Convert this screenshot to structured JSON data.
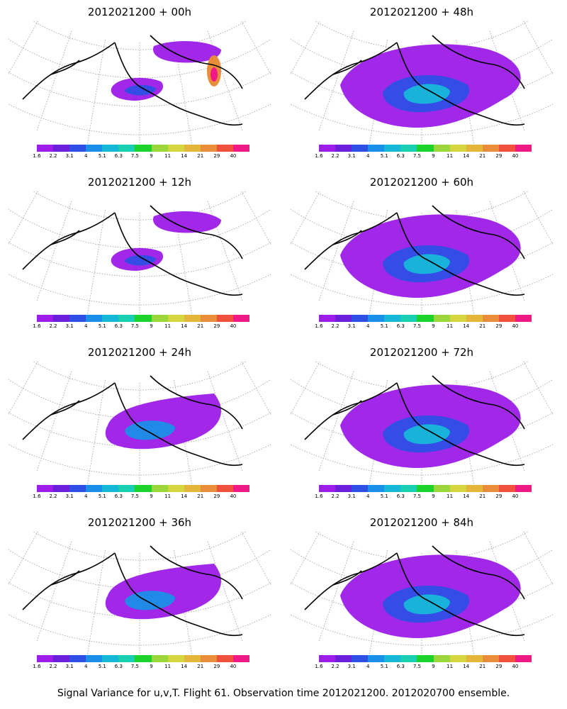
{
  "colorbar": {
    "ticks": [
      "1.6",
      "2.2",
      "3.1",
      "4",
      "5.1",
      "6.3",
      "7.5",
      "9",
      "11",
      "14",
      "21",
      "29",
      "40"
    ],
    "colors": [
      "#9c1ce8",
      "#6b1fd8",
      "#2d4fe6",
      "#1a8fe8",
      "#17b7d9",
      "#18cfb0",
      "#1dd32b",
      "#9bd63a",
      "#d6d640",
      "#e3b63a",
      "#ea8d3a",
      "#f0513e",
      "#f01a86"
    ]
  },
  "panels": [
    {
      "title": "2012021200 + 00h",
      "intensity": 0.2,
      "extent": "small",
      "hotspot": true
    },
    {
      "title": "2012021200 + 48h",
      "intensity": 0.55,
      "extent": "large",
      "hotspot": false
    },
    {
      "title": "2012021200 + 12h",
      "intensity": 0.3,
      "extent": "small",
      "hotspot": false
    },
    {
      "title": "2012021200 + 60h",
      "intensity": 0.6,
      "extent": "large",
      "hotspot": false
    },
    {
      "title": "2012021200 + 24h",
      "intensity": 0.35,
      "extent": "medium",
      "hotspot": false
    },
    {
      "title": "2012021200 + 72h",
      "intensity": 0.65,
      "extent": "large",
      "hotspot": false
    },
    {
      "title": "2012021200 + 36h",
      "intensity": 0.45,
      "extent": "medium",
      "hotspot": false
    },
    {
      "title": "2012021200 + 84h",
      "intensity": 0.7,
      "extent": "large",
      "hotspot": false
    }
  ],
  "footer": "Signal Variance for u,v,T. Flight 61. Observation time 2012021200. 2012020700 ensemble."
}
